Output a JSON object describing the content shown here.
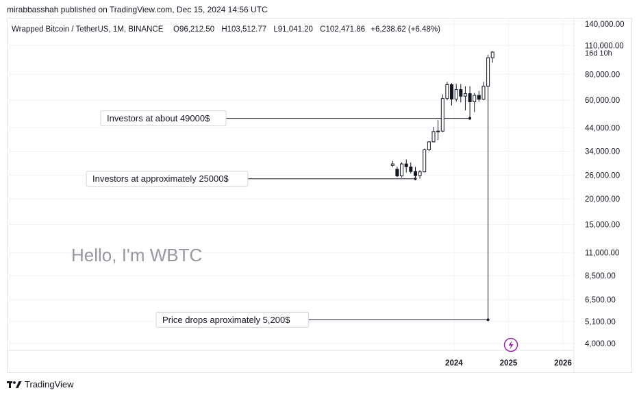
{
  "header": {
    "published": "mirabbasshah published on TradingView.com, Dec 15, 2024 14:56 UTC"
  },
  "legend": {
    "symbol": "Wrapped Bitcoin / TetherUS, 1M, BINANCE",
    "open": "O96,212.50",
    "high": "H103,512.77",
    "low": "L91,041.20",
    "close": "C102,471.86",
    "change": "+6,238.62 (+6.48%)"
  },
  "countdown": "16d 10h",
  "watermark": "Hello, I'm WBTC",
  "footer": {
    "brand": "TradingView"
  },
  "colors": {
    "candle_up_body": "#ffffff",
    "candle_down_body": "#131722",
    "outline": "#131722",
    "callout_border": "#d1d4dc",
    "watermark": "#9598a1",
    "lightning": "#9c27b0"
  },
  "chart_data": {
    "type": "candlestick",
    "scale": "log",
    "title": "Wrapped Bitcoin / TetherUS, 1M, BINANCE",
    "y_ticks": [
      "140,000.00",
      "110,000.00",
      "80,000.00",
      "60,000.00",
      "44,000.00",
      "34,000.00",
      "26,000.00",
      "20,000.00",
      "15,000.00",
      "11,000.00",
      "8,500.00",
      "6,500.00",
      "5,100.00",
      "4,000.00"
    ],
    "y_tick_values": [
      140000,
      110000,
      80000,
      60000,
      44000,
      34000,
      26000,
      20000,
      15000,
      11000,
      8500,
      6500,
      5100,
      4000
    ],
    "ylim": [
      3700,
      150000
    ],
    "x_ticks": [
      "2024",
      "2025",
      "2026"
    ],
    "x_tick_values": [
      2024.0,
      2025.0,
      2026.0
    ],
    "xlim": [
      2015.8,
      2026.2
    ],
    "candles": [
      {
        "t": 2022.875,
        "o": 29000,
        "h": 30500,
        "l": 28500,
        "c": 29500
      },
      {
        "t": 2022.958,
        "o": 27800,
        "h": 28600,
        "l": 25500,
        "c": 25800
      },
      {
        "t": 2023.042,
        "o": 25800,
        "h": 30000,
        "l": 25300,
        "c": 29500
      },
      {
        "t": 2023.125,
        "o": 29500,
        "h": 31000,
        "l": 26800,
        "c": 28600
      },
      {
        "t": 2023.208,
        "o": 28500,
        "h": 30000,
        "l": 26500,
        "c": 27100
      },
      {
        "t": 2023.292,
        "o": 27100,
        "h": 28500,
        "l": 25000,
        "c": 25900
      },
      {
        "t": 2023.375,
        "o": 25900,
        "h": 27500,
        "l": 25000,
        "c": 27000
      },
      {
        "t": 2023.458,
        "o": 27000,
        "h": 35000,
        "l": 26800,
        "c": 34500
      },
      {
        "t": 2023.542,
        "o": 34500,
        "h": 38000,
        "l": 34000,
        "c": 37700
      },
      {
        "t": 2023.625,
        "o": 37700,
        "h": 44500,
        "l": 37500,
        "c": 42300
      },
      {
        "t": 2023.708,
        "o": 42300,
        "h": 48000,
        "l": 38500,
        "c": 42500
      },
      {
        "t": 2023.792,
        "o": 42500,
        "h": 64000,
        "l": 42000,
        "c": 61100
      },
      {
        "t": 2023.875,
        "o": 61100,
        "h": 73500,
        "l": 60000,
        "c": 71300
      },
      {
        "t": 2023.958,
        "o": 71300,
        "h": 72500,
        "l": 56500,
        "c": 60700
      },
      {
        "t": 2024.042,
        "o": 60700,
        "h": 72000,
        "l": 59000,
        "c": 67500
      },
      {
        "t": 2024.125,
        "o": 67500,
        "h": 71800,
        "l": 58500,
        "c": 62700
      },
      {
        "t": 2024.208,
        "o": 62700,
        "h": 70000,
        "l": 53500,
        "c": 64500
      },
      {
        "t": 2024.292,
        "o": 64500,
        "h": 70000,
        "l": 49000,
        "c": 58900
      },
      {
        "t": 2024.375,
        "o": 58900,
        "h": 65000,
        "l": 52500,
        "c": 63300
      },
      {
        "t": 2024.458,
        "o": 63300,
        "h": 66500,
        "l": 58800,
        "c": 60600
      },
      {
        "t": 2024.542,
        "o": 60600,
        "h": 73500,
        "l": 60000,
        "c": 70000
      },
      {
        "t": 2024.625,
        "o": 70000,
        "h": 99500,
        "l": 66800,
        "c": 96200
      },
      {
        "t": 2024.708,
        "o": 96212.5,
        "h": 103512.77,
        "l": 91041.2,
        "c": 102471.86
      }
    ],
    "annotations": [
      {
        "text": "Investors at about 49000$",
        "value": 49000,
        "x_end": 2024.292
      },
      {
        "text": "Investors at approximately 25000$",
        "value": 25000,
        "x_end": 2023.292
      },
      {
        "text": "Price drops aproximately 5,200$",
        "value": 5200,
        "x_end": 2024.625
      }
    ]
  }
}
